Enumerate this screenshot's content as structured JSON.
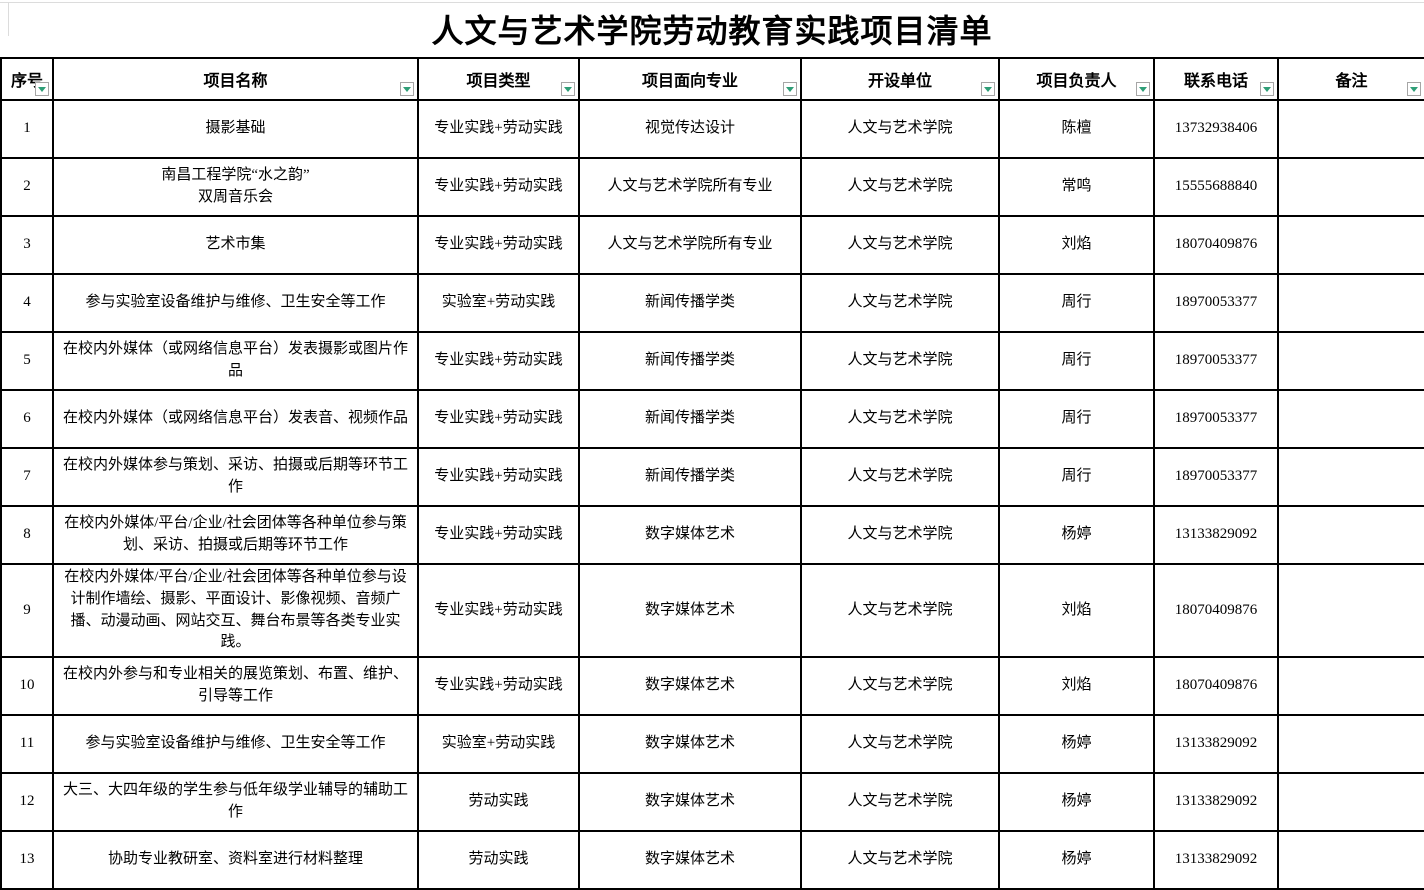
{
  "title": "人文与艺术学院劳动教育实践项目清单",
  "colors": {
    "background": "#ffffff",
    "text": "#000000",
    "grid_border": "#000000",
    "filter_icon": "#2f9e77",
    "filter_button_border": "#a6a6a6"
  },
  "icons": {
    "filter_dropdown": "▼"
  },
  "table": {
    "columns": [
      {
        "key": "no",
        "label": "序号"
      },
      {
        "key": "name",
        "label": "项目名称"
      },
      {
        "key": "type",
        "label": "项目类型"
      },
      {
        "key": "major",
        "label": "项目面向专业"
      },
      {
        "key": "unit",
        "label": "开设单位"
      },
      {
        "key": "leader",
        "label": "项目负责人"
      },
      {
        "key": "phone",
        "label": "联系电话"
      },
      {
        "key": "note",
        "label": "备注"
      }
    ],
    "rows": [
      [
        "1",
        "摄影基础",
        "专业实践+劳动实践",
        "视觉传达设计",
        "人文与艺术学院",
        "陈檀",
        "13732938406",
        ""
      ],
      [
        "2",
        "南昌工程学院“水之韵”\n双周音乐会",
        "专业实践+劳动实践",
        "人文与艺术学院所有专业",
        "人文与艺术学院",
        "常鸣",
        "15555688840",
        ""
      ],
      [
        "3",
        "艺术市集",
        "专业实践+劳动实践",
        "人文与艺术学院所有专业",
        "人文与艺术学院",
        "刘焰",
        "18070409876",
        ""
      ],
      [
        "4",
        "参与实验室设备维护与维修、卫生安全等工作",
        "实验室+劳动实践",
        "新闻传播学类",
        "人文与艺术学院",
        "周行",
        "18970053377",
        ""
      ],
      [
        "5",
        "在校内外媒体（或网络信息平台）发表摄影或图片作品",
        "专业实践+劳动实践",
        "新闻传播学类",
        "人文与艺术学院",
        "周行",
        "18970053377",
        ""
      ],
      [
        "6",
        "在校内外媒体（或网络信息平台）发表音、视频作品",
        "专业实践+劳动实践",
        "新闻传播学类",
        "人文与艺术学院",
        "周行",
        "18970053377",
        ""
      ],
      [
        "7",
        "在校内外媒体参与策划、采访、拍摄或后期等环节工作",
        "专业实践+劳动实践",
        "新闻传播学类",
        "人文与艺术学院",
        "周行",
        "18970053377",
        ""
      ],
      [
        "8",
        "在校内外媒体/平台/企业/社会团体等各种单位参与策划、采访、拍摄或后期等环节工作",
        "专业实践+劳动实践",
        "数字媒体艺术",
        "人文与艺术学院",
        "杨婷",
        "13133829092",
        ""
      ],
      [
        "9",
        "在校内外媒体/平台/企业/社会团体等各种单位参与设计制作墙绘、摄影、平面设计、影像视频、音频广播、动漫动画、网站交互、舞台布景等各类专业实践。",
        "专业实践+劳动实践",
        "数字媒体艺术",
        "人文与艺术学院",
        "刘焰",
        "18070409876",
        ""
      ],
      [
        "10",
        "在校内外参与和专业相关的展览策划、布置、维护、引导等工作",
        "专业实践+劳动实践",
        "数字媒体艺术",
        "人文与艺术学院",
        "刘焰",
        "18070409876",
        ""
      ],
      [
        "11",
        "参与实验室设备维护与维修、卫生安全等工作",
        "实验室+劳动实践",
        "数字媒体艺术",
        "人文与艺术学院",
        "杨婷",
        "13133829092",
        ""
      ],
      [
        "12",
        "大三、大四年级的学生参与低年级学业辅导的辅助工作",
        "劳动实践",
        "数字媒体艺术",
        "人文与艺术学院",
        "杨婷",
        "13133829092",
        ""
      ],
      [
        "13",
        "协助专业教研室、资料室进行材料整理",
        "劳动实践",
        "数字媒体艺术",
        "人文与艺术学院",
        "杨婷",
        "13133829092",
        ""
      ]
    ]
  }
}
